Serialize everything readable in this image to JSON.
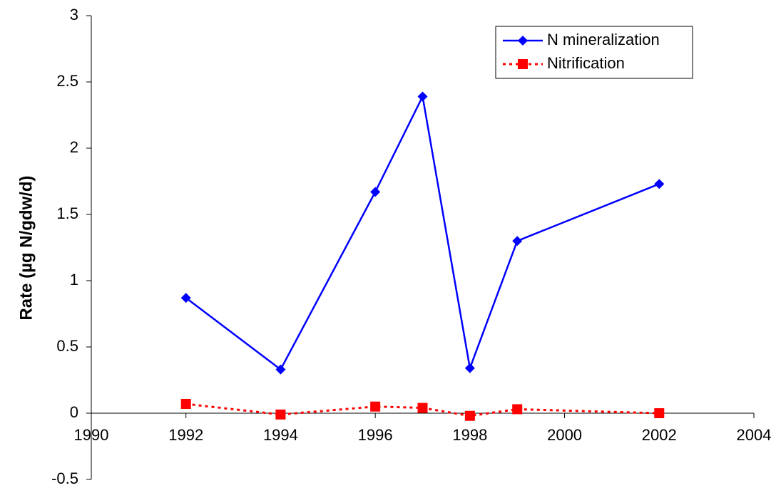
{
  "chart_data": {
    "type": "line",
    "y_label": "Rate (µg N/gdw/d)",
    "x": [
      1992,
      1994,
      1996,
      1997,
      1998,
      1999,
      2002
    ],
    "series": [
      {
        "name": "N mineralization",
        "color": "#0000ff",
        "linestyle": "solid",
        "marker": "diamond",
        "values": [
          0.87,
          0.33,
          1.67,
          2.39,
          0.34,
          1.3,
          1.73
        ]
      },
      {
        "name": "Nitrification",
        "color": "#ff0000",
        "linestyle": "dotted",
        "marker": "square",
        "values": [
          0.07,
          -0.01,
          0.05,
          0.04,
          -0.02,
          0.03,
          0.0
        ]
      }
    ],
    "xlim": [
      1990,
      2004
    ],
    "xticks": [
      1990,
      1992,
      1994,
      1996,
      1998,
      2000,
      2002,
      2004
    ],
    "ylim": [
      -0.5,
      3
    ],
    "yticks": [
      -0.5,
      0,
      0.5,
      1,
      1.5,
      2,
      2.5,
      3
    ],
    "grid": false,
    "legend": "upper right"
  }
}
